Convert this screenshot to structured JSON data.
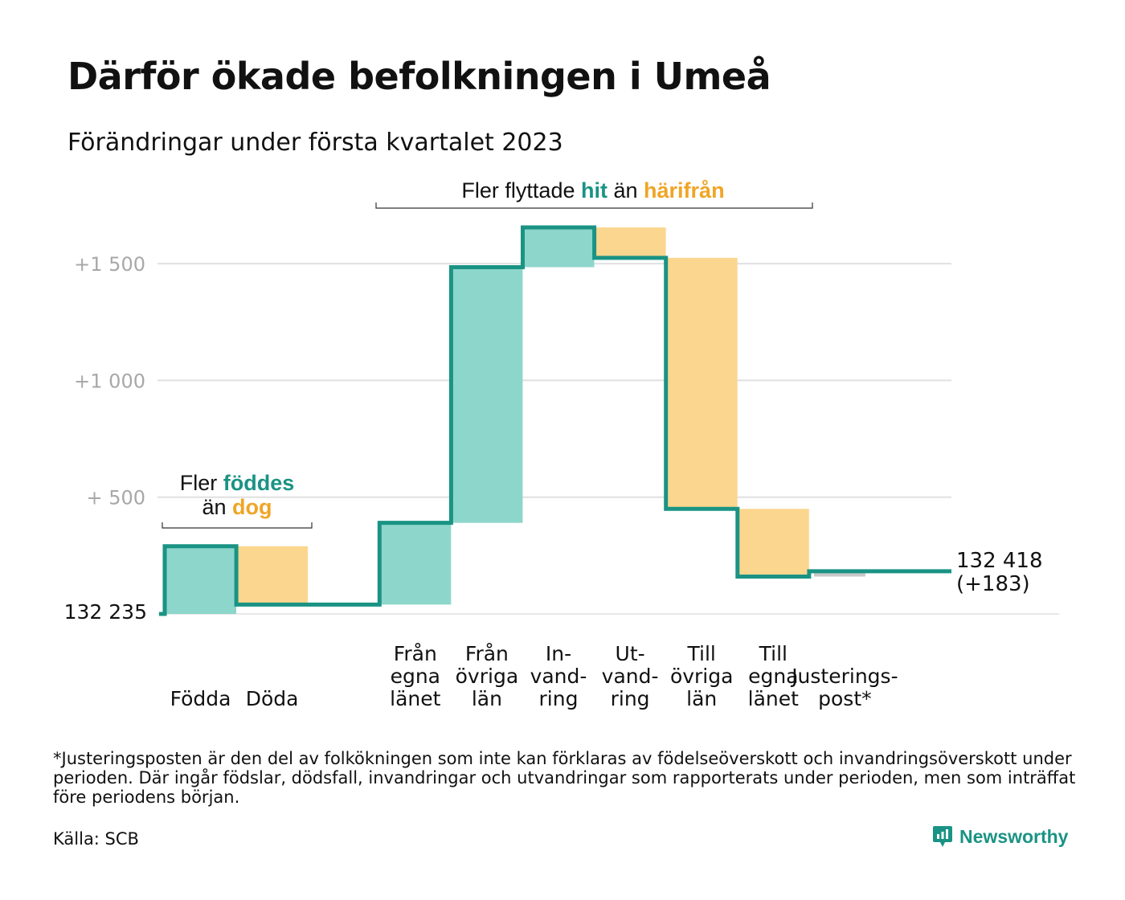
{
  "title": "Därför ökade befolkningen i Umeå",
  "subtitle": "Förändringar under första kvartalet 2023",
  "colors": {
    "inflow": "#8dd6cb",
    "outflow": "#fbd68f",
    "adjustment": "#c8c8c8",
    "line": "#1a9384",
    "accent_orange": "#f0a526",
    "grid": "#e0e0e0"
  },
  "annotations": {
    "births_deaths": {
      "line1_prefix": "Fler ",
      "line1_highlight": "föddes",
      "line2_prefix": "än ",
      "line2_highlight": "dog"
    },
    "migration": {
      "prefix": "Fler flyttade ",
      "highlight1": "hit",
      "middle": " än ",
      "highlight2": "härifrån"
    }
  },
  "chart_data": {
    "type": "waterfall",
    "start_label": "132 235",
    "end_label_line1": "132 418",
    "end_label_line2": "(+183)",
    "ylim": [
      0,
      1650
    ],
    "yticks": [
      {
        "value": 500,
        "label": "+ 500"
      },
      {
        "value": 1000,
        "label": "+1 000"
      },
      {
        "value": 1500,
        "label": "+1 500"
      }
    ],
    "steps": [
      {
        "label_lines": [
          "Födda"
        ],
        "change": 290,
        "kind": "inflow"
      },
      {
        "label_lines": [
          "Döda"
        ],
        "change": -250,
        "kind": "outflow"
      },
      {
        "label_lines": [
          "Från",
          "egna",
          "länet"
        ],
        "change": 350,
        "kind": "inflow"
      },
      {
        "label_lines": [
          "Från",
          "övriga",
          "län"
        ],
        "change": 1095,
        "kind": "inflow"
      },
      {
        "label_lines": [
          "In-",
          "vand-",
          "ring"
        ],
        "change": 170,
        "kind": "inflow"
      },
      {
        "label_lines": [
          "Ut-",
          "vand-",
          "ring"
        ],
        "change": -130,
        "kind": "outflow"
      },
      {
        "label_lines": [
          "Till",
          "övriga",
          "län"
        ],
        "change": -1075,
        "kind": "outflow"
      },
      {
        "label_lines": [
          "Till",
          "egna",
          "länet"
        ],
        "change": -290,
        "kind": "outflow"
      },
      {
        "label_lines": [
          "Justerings-",
          "post*"
        ],
        "change": 23,
        "kind": "adjustment"
      }
    ]
  },
  "footnote": "*Justeringsposten är den del av folkökningen som inte kan förklaras av födelseöverskott och invandringsöverskott under perioden. Där ingår födslar, dödsfall, invandringar och utvandringar som rapporterats under perioden, men som inträffat före periodens början.",
  "source": "Källa: SCB",
  "brand": "Newsworthy"
}
